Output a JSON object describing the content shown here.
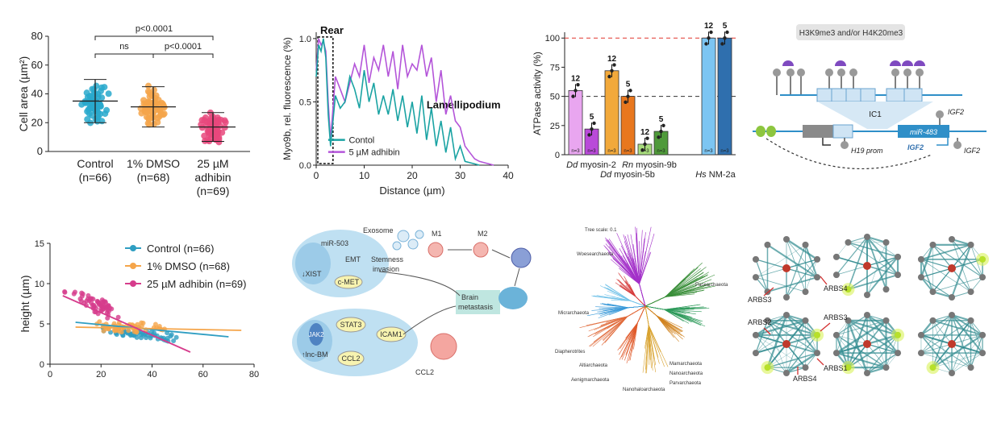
{
  "chart_data": [
    {
      "type": "scatter",
      "subtype": "dot-plot",
      "ylabel": "Cell area (µm²)",
      "ylim": [
        0,
        80
      ],
      "yticks": [
        0,
        20,
        40,
        60,
        80
      ],
      "categories": [
        "Control\n(n=66)",
        "1% DMSO\n(n=68)",
        "25 µM\nadhibin\n(n=69)"
      ],
      "groups": [
        {
          "name": "Control",
          "n": 66,
          "mean": 35,
          "sd": 15,
          "color": "#29a9cc"
        },
        {
          "name": "1% DMSO",
          "n": 68,
          "mean": 31,
          "sd": 14,
          "color": "#f5a54a"
        },
        {
          "name": "25 µM adhibin",
          "n": 69,
          "mean": 17,
          "sd": 10,
          "color": "#e8487c"
        }
      ],
      "annotations": [
        {
          "label": "p<0.0001",
          "between": [
            0,
            2
          ]
        },
        {
          "label": "ns",
          "between": [
            0,
            1
          ]
        },
        {
          "label": "p<0.0001",
          "between": [
            1,
            2
          ]
        }
      ]
    },
    {
      "type": "line",
      "xlabel": "Distance (µm)",
      "ylabel": "Myo9b, rel. fluorescence (%)",
      "xlim": [
        0,
        40
      ],
      "ylim": [
        0,
        1.05
      ],
      "xticks": [
        0,
        10,
        20,
        30,
        40
      ],
      "yticks": [
        0.0,
        0.5,
        1.0
      ],
      "annotations": [
        "Rear",
        "Lamellipodium"
      ],
      "series": [
        {
          "name": "Contol",
          "color": "#1aa3a3",
          "x": [
            0,
            0.5,
            1,
            1.5,
            2,
            2.5,
            3,
            3.5,
            4,
            5,
            6,
            7,
            8,
            9,
            10,
            11,
            12,
            13,
            14,
            15,
            16,
            17,
            18,
            19,
            20,
            21,
            22,
            23,
            24,
            25,
            26,
            27,
            28,
            29,
            30,
            31,
            32,
            33,
            34
          ],
          "y": [
            0.7,
            0.95,
            0.9,
            1.0,
            0.85,
            0.4,
            0.15,
            0.35,
            0.55,
            0.45,
            0.5,
            0.7,
            0.6,
            0.45,
            0.75,
            0.5,
            0.65,
            0.4,
            0.55,
            0.4,
            0.6,
            0.35,
            0.55,
            0.3,
            0.5,
            0.25,
            0.55,
            0.2,
            0.45,
            0.15,
            0.35,
            0.1,
            0.3,
            0.05,
            0.15,
            0.03,
            0.02,
            0.01,
            0.0
          ]
        },
        {
          "name": "5 µM adhibin",
          "color": "#b455d9",
          "x": [
            0,
            0.5,
            1,
            1.5,
            2,
            2.5,
            3,
            3.5,
            4,
            5,
            6,
            7,
            8,
            9,
            10,
            11,
            12,
            13,
            14,
            15,
            16,
            17,
            18,
            19,
            20,
            21,
            22,
            23,
            24,
            25,
            26,
            27,
            28,
            29,
            30,
            31,
            32,
            33,
            34,
            35,
            36,
            37
          ],
          "y": [
            0.75,
            1.0,
            0.95,
            0.98,
            0.9,
            0.5,
            0.2,
            0.45,
            0.7,
            0.6,
            0.5,
            0.65,
            0.8,
            0.7,
            0.95,
            0.65,
            0.85,
            0.75,
            0.95,
            0.7,
            0.9,
            0.6,
            0.95,
            0.7,
            0.8,
            0.75,
            0.95,
            0.7,
            0.85,
            0.5,
            0.75,
            0.4,
            0.55,
            0.35,
            0.3,
            0.15,
            0.1,
            0.05,
            0.03,
            0.02,
            0.01,
            0.0
          ]
        }
      ]
    },
    {
      "type": "bar",
      "ylabel": "ATPase activity (%)",
      "ylim": [
        0,
        105
      ],
      "yticks": [
        0,
        25,
        50,
        75,
        100
      ],
      "reference_lines": [
        100,
        50
      ],
      "bars": [
        {
          "value": 55,
          "top": "12",
          "n": "n=3",
          "color": "#e9a6f0"
        },
        {
          "value": 22,
          "top": "5",
          "n": "n=3",
          "color": "#b94ad9"
        },
        {
          "value": 72,
          "top": "12",
          "n": "n=3",
          "color": "#f2a93b"
        },
        {
          "value": 50,
          "top": "5",
          "n": "n=3",
          "color": "#e8771e"
        },
        {
          "value": 9,
          "top": "12",
          "n": "n=3",
          "color": "#a8dc7d"
        },
        {
          "value": 20,
          "top": "5",
          "n": "n=3",
          "color": "#4f9a3a"
        },
        {
          "value": 100,
          "top": "12",
          "n": "n=3",
          "color": "#7cc5f2"
        },
        {
          "value": 100,
          "top": "5",
          "n": "n=3",
          "color": "#2f6fae"
        }
      ],
      "group_labels": [
        {
          "italic": "Dd",
          "text": " myosin-2"
        },
        {
          "italic": "Dd",
          "text": " myosin-5b"
        },
        {
          "italic": "Rn",
          "text": " myosin-9b"
        },
        {
          "italic": "Hs",
          "text": " NM-2a"
        }
      ]
    },
    {
      "type": "scatter",
      "xlabel": "",
      "ylabel": "height (µm)",
      "xlim": [
        0,
        80
      ],
      "ylim": [
        0,
        15
      ],
      "xticks": [
        0,
        20,
        40,
        60,
        80
      ],
      "yticks": [
        0,
        5,
        10,
        15
      ],
      "series": [
        {
          "name": "Control (n=66)",
          "color": "#2f9ec2",
          "fit": [
            [
              10,
              5.2
            ],
            [
              70,
              3.4
            ]
          ]
        },
        {
          "name": "1% DMSO (n=68)",
          "color": "#f5a54a",
          "fit": [
            [
              10,
              4.6
            ],
            [
              75,
              4.2
            ]
          ]
        },
        {
          "name": "25 µM adhibin (n=69)",
          "color": "#d63c8c",
          "fit": [
            [
              5,
              8.5
            ],
            [
              55,
              1.5
            ]
          ]
        }
      ]
    }
  ],
  "diagram_imprinting": {
    "header": "H3K9me3 and/or H4K20me3",
    "ic_label": "IC1",
    "gene_label": "miR-483",
    "igf2_top": "IGF2",
    "igf2_arrow": "IGF2",
    "igf2_right": "IGF2",
    "h19_label": "H19 prom"
  },
  "diagram_metastasis": {
    "mir": "miR-503",
    "exosome": "Exosome",
    "m1": "M1",
    "m2": "M2",
    "xist": "↓XIST",
    "cmet": "c-MET",
    "emt": "EMT",
    "stemness": "Stemness",
    "invasion": "invasion",
    "brain": "Brain",
    "metastasis": "metastasis",
    "jak2": "JAK2",
    "stat3": "STAT3",
    "icam1": "ICAM1",
    "ccl2": "CCL2",
    "ccl2_out": "CCL2",
    "lnc": "↑lnc-BM"
  },
  "tree": {
    "scale": "Tree scale: 0.1",
    "labels": [
      "Woesearchaeota",
      "Pacearchaeota",
      "Micrarchaeota",
      "Diapherotrites",
      "Altiarchaeota",
      "Aenigmarchaeota",
      "Nanohaloarchaeota",
      "Parvarchaeota",
      "Nanoarchaeota",
      "Mamarchaeota"
    ]
  },
  "networks": {
    "labels": [
      "ARBS3",
      "ARBS4",
      "ARBS2",
      "ARBS3",
      "ARBS4",
      "ARBS1"
    ]
  }
}
